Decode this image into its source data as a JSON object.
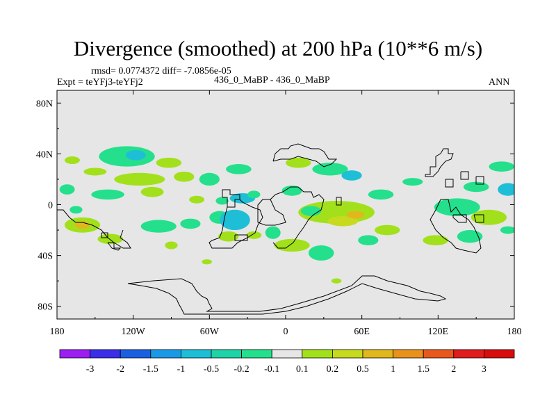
{
  "page": {
    "title": "Divergence (smoothed) at 200 hPa (10**6 m/s)",
    "stats": "rmsd= 0.0774372 diff= -7.0856e-05",
    "left_label": "Expt = teYFj3-teYFj2",
    "center_label": "436_0_MaBP - 436_0_MaBP",
    "right_label": "ANN"
  },
  "chart_data": {
    "type": "heatmap",
    "title": "Divergence (smoothed) at 200 hPa (10**6 m/s)",
    "projection": "cylindrical equidistant",
    "xlim": [
      -180,
      180
    ],
    "ylim": [
      -90,
      90
    ],
    "x_ticks": [
      -180,
      -120,
      -60,
      0,
      60,
      120,
      180
    ],
    "x_tick_labels": [
      "180",
      "120W",
      "60W",
      "0",
      "60E",
      "120E",
      "180"
    ],
    "y_ticks": [
      80,
      40,
      0,
      -40,
      -80
    ],
    "y_tick_labels": [
      "80N",
      "40N",
      "0",
      "40S",
      "80S"
    ],
    "background_color": "#e6e6e6",
    "colorbar": {
      "levels": [
        "-3",
        "-2",
        "-1.5",
        "-1",
        "-0.5",
        "-0.2",
        "-0.1",
        "0.1",
        "0.2",
        "0.5",
        "1",
        "1.5",
        "2",
        "3"
      ],
      "colors": [
        "#9b1ff0",
        "#3a2ee8",
        "#1a5fe0",
        "#1a9ae6",
        "#1ebfd6",
        "#1dd3a7",
        "#24e08c",
        "#e6e6e6",
        "#a3e01c",
        "#c8da1e",
        "#e0b81e",
        "#e8921c",
        "#e8581c",
        "#e01c1c",
        "#d80c0c"
      ]
    },
    "blobs": [
      {
        "lon": -168,
        "lat": 35,
        "rx": 6,
        "ry": 3,
        "cls": "#a3e01c"
      },
      {
        "lon": -125,
        "lat": 38,
        "rx": 22,
        "ry": 8,
        "cls": "#24e08c"
      },
      {
        "lon": -118,
        "lat": 39,
        "rx": 8,
        "ry": 4,
        "cls": "#1ebfd6"
      },
      {
        "lon": -92,
        "lat": 33,
        "rx": 10,
        "ry": 4,
        "cls": "#a3e01c"
      },
      {
        "lon": -150,
        "lat": 26,
        "rx": 9,
        "ry": 3,
        "cls": "#a3e01c"
      },
      {
        "lon": -115,
        "lat": 20,
        "rx": 20,
        "ry": 5,
        "cls": "#a3e01c"
      },
      {
        "lon": -80,
        "lat": 22,
        "rx": 8,
        "ry": 4,
        "cls": "#a3e01c"
      },
      {
        "lon": -60,
        "lat": 20,
        "rx": 8,
        "ry": 5,
        "cls": "#24e08c"
      },
      {
        "lon": -37,
        "lat": 28,
        "rx": 10,
        "ry": 4,
        "cls": "#24e08c"
      },
      {
        "lon": -172,
        "lat": 12,
        "rx": 6,
        "ry": 4,
        "cls": "#24e08c"
      },
      {
        "lon": -140,
        "lat": 8,
        "rx": 13,
        "ry": 4,
        "cls": "#24e08c"
      },
      {
        "lon": -105,
        "lat": 10,
        "rx": 9,
        "ry": 4,
        "cls": "#a3e01c"
      },
      {
        "lon": -70,
        "lat": 4,
        "rx": 6,
        "ry": 3,
        "cls": "#a3e01c"
      },
      {
        "lon": -50,
        "lat": 3,
        "rx": 5,
        "ry": 3,
        "cls": "#24e08c"
      },
      {
        "lon": -34,
        "lat": 5,
        "rx": 10,
        "ry": 4,
        "cls": "#1ebfd6"
      },
      {
        "lon": -25,
        "lat": 8,
        "rx": 5,
        "ry": 3,
        "cls": "#24e08c"
      },
      {
        "lon": -160,
        "lat": -16,
        "rx": 14,
        "ry": 6,
        "cls": "#a3e01c"
      },
      {
        "lon": -160,
        "lat": -16,
        "rx": 6,
        "ry": 3,
        "cls": "#e0b81e"
      },
      {
        "lon": -138,
        "lat": -27,
        "rx": 10,
        "ry": 4,
        "cls": "#a3e01c"
      },
      {
        "lon": -100,
        "lat": -17,
        "rx": 14,
        "ry": 5,
        "cls": "#24e08c"
      },
      {
        "lon": -75,
        "lat": -15,
        "rx": 8,
        "ry": 4,
        "cls": "#24e08c"
      },
      {
        "lon": -52,
        "lat": -10,
        "rx": 8,
        "ry": 5,
        "cls": "#24e08c"
      },
      {
        "lon": -165,
        "lat": -4,
        "rx": 5,
        "ry": 3,
        "cls": "#24e08c"
      },
      {
        "lon": -40,
        "lat": -12,
        "rx": 12,
        "ry": 8,
        "cls": "#1ebfd6"
      },
      {
        "lon": -10,
        "lat": -22,
        "rx": 6,
        "ry": 5,
        "cls": "#24e08c"
      },
      {
        "lon": -25,
        "lat": -24,
        "rx": 6,
        "ry": 3,
        "cls": "#a3e01c"
      },
      {
        "lon": 10,
        "lat": 33,
        "rx": 10,
        "ry": 4,
        "cls": "#a3e01c"
      },
      {
        "lon": 35,
        "lat": 28,
        "rx": 14,
        "ry": 5,
        "cls": "#24e08c"
      },
      {
        "lon": 52,
        "lat": 23,
        "rx": 8,
        "ry": 4,
        "cls": "#1ebfd6"
      },
      {
        "lon": 5,
        "lat": 11,
        "rx": 8,
        "ry": 4,
        "cls": "#24e08c"
      },
      {
        "lon": 40,
        "lat": -6,
        "rx": 30,
        "ry": 9,
        "cls": "#a3e01c"
      },
      {
        "lon": 45,
        "lat": -13,
        "rx": 12,
        "ry": 4,
        "cls": "#c8da1e"
      },
      {
        "lon": 55,
        "lat": -8,
        "rx": 7,
        "ry": 3,
        "cls": "#e0b81e"
      },
      {
        "lon": 20,
        "lat": -5,
        "rx": 8,
        "ry": 4,
        "cls": "#24e08c"
      },
      {
        "lon": 75,
        "lat": 8,
        "rx": 10,
        "ry": 4,
        "cls": "#24e08c"
      },
      {
        "lon": 5,
        "lat": -32,
        "rx": 14,
        "ry": 5,
        "cls": "#a3e01c"
      },
      {
        "lon": 28,
        "lat": -38,
        "rx": 10,
        "ry": 6,
        "cls": "#24e08c"
      },
      {
        "lon": 65,
        "lat": -28,
        "rx": 8,
        "ry": 4,
        "cls": "#24e08c"
      },
      {
        "lon": 80,
        "lat": -20,
        "rx": 10,
        "ry": 4,
        "cls": "#a3e01c"
      },
      {
        "lon": 100,
        "lat": 18,
        "rx": 8,
        "ry": 3,
        "cls": "#24e08c"
      },
      {
        "lon": 135,
        "lat": -2,
        "rx": 18,
        "ry": 7,
        "cls": "#24e08c"
      },
      {
        "lon": 150,
        "lat": 14,
        "rx": 10,
        "ry": 4,
        "cls": "#24e08c"
      },
      {
        "lon": 145,
        "lat": -25,
        "rx": 10,
        "ry": 5,
        "cls": "#24e08c"
      },
      {
        "lon": 160,
        "lat": -10,
        "rx": 14,
        "ry": 6,
        "cls": "#a3e01c"
      },
      {
        "lon": 175,
        "lat": 12,
        "rx": 8,
        "ry": 5,
        "cls": "#1ebfd6"
      },
      {
        "lon": 170,
        "lat": 30,
        "rx": 10,
        "ry": 4,
        "cls": "#24e08c"
      },
      {
        "lon": 175,
        "lat": -20,
        "rx": 6,
        "ry": 3,
        "cls": "#24e08c"
      },
      {
        "lon": 118,
        "lat": -28,
        "rx": 10,
        "ry": 4,
        "cls": "#a3e01c"
      },
      {
        "lon": -45,
        "lat": -25,
        "rx": 8,
        "ry": 4,
        "cls": "#a3e01c"
      },
      {
        "lon": -90,
        "lat": -32,
        "rx": 5,
        "ry": 3,
        "cls": "#a3e01c"
      },
      {
        "lon": -62,
        "lat": -45,
        "rx": 4,
        "ry": 2,
        "cls": "#a3e01c"
      },
      {
        "lon": 40,
        "lat": -60,
        "rx": 4,
        "ry": 2,
        "cls": "#a3e01c"
      }
    ],
    "coastlines": [
      [
        [
          -180,
          -4
        ],
        [
          -175,
          -4
        ],
        [
          -170,
          -10
        ],
        [
          -165,
          -14
        ],
        [
          -160,
          -14
        ],
        [
          -152,
          -16
        ],
        [
          -145,
          -20
        ],
        [
          -140,
          -26
        ],
        [
          -135,
          -30
        ],
        [
          -128,
          -34
        ],
        [
          -122,
          -34
        ],
        [
          -125,
          -30
        ],
        [
          -130,
          -26
        ],
        [
          -128,
          -20
        ]
      ],
      [
        [
          -145,
          -22
        ],
        [
          -140,
          -22
        ],
        [
          -140,
          -26
        ],
        [
          -145,
          -26
        ],
        [
          -145,
          -22
        ]
      ],
      [
        [
          -140,
          -30
        ],
        [
          -135,
          -30
        ],
        [
          -135,
          -34
        ],
        [
          -130,
          -34
        ],
        [
          -132,
          -36
        ],
        [
          -137,
          -34
        ],
        [
          -140,
          -30
        ]
      ],
      [
        [
          -50,
          6
        ],
        [
          -46,
          6
        ],
        [
          -46,
          -2
        ],
        [
          -40,
          -2
        ],
        [
          -40,
          4
        ],
        [
          -36,
          4
        ],
        [
          -36,
          8
        ],
        [
          -44,
          8
        ],
        [
          -44,
          12
        ],
        [
          -50,
          12
        ],
        [
          -50,
          6
        ]
      ],
      [
        [
          -46,
          -2
        ],
        [
          -48,
          -10
        ],
        [
          -50,
          -20
        ],
        [
          -52,
          -26
        ],
        [
          -58,
          -28
        ],
        [
          -60,
          -30
        ],
        [
          -58,
          -34
        ],
        [
          -42,
          -34
        ],
        [
          -38,
          -30
        ],
        [
          -30,
          -26
        ],
        [
          -24,
          -22
        ],
        [
          -22,
          -16
        ],
        [
          -18,
          -10
        ],
        [
          -20,
          -4
        ],
        [
          -26,
          -2
        ],
        [
          -34,
          2
        ],
        [
          -36,
          4
        ]
      ],
      [
        [
          -22,
          -14
        ],
        [
          -16,
          -16
        ],
        [
          -8,
          -16
        ],
        [
          0,
          -14
        ],
        [
          -2,
          -8
        ],
        [
          -8,
          -4
        ],
        [
          -12,
          4
        ],
        [
          -18,
          4
        ],
        [
          -22,
          0
        ],
        [
          -22,
          -14
        ]
      ],
      [
        [
          -10,
          -30
        ],
        [
          -6,
          -34
        ],
        [
          0,
          -34
        ],
        [
          6,
          -30
        ],
        [
          10,
          -24
        ],
        [
          14,
          -18
        ],
        [
          18,
          -12
        ],
        [
          22,
          -8
        ],
        [
          28,
          -4
        ],
        [
          30,
          4
        ],
        [
          26,
          8
        ],
        [
          22,
          6
        ],
        [
          20,
          10
        ],
        [
          14,
          10
        ],
        [
          10,
          14
        ],
        [
          4,
          14
        ],
        [
          -2,
          10
        ],
        [
          -8,
          8
        ],
        [
          -12,
          4
        ]
      ],
      [
        [
          -10,
          34
        ],
        [
          -8,
          40
        ],
        [
          -4,
          44
        ],
        [
          2,
          44
        ],
        [
          4,
          46
        ],
        [
          10,
          48
        ],
        [
          14,
          46
        ],
        [
          20,
          44
        ],
        [
          26,
          44
        ],
        [
          30,
          42
        ],
        [
          34,
          36
        ],
        [
          40,
          36
        ],
        [
          36,
          32
        ],
        [
          30,
          30
        ],
        [
          24,
          34
        ],
        [
          18,
          36
        ],
        [
          10,
          38
        ],
        [
          4,
          36
        ],
        [
          -4,
          36
        ],
        [
          -10,
          34
        ]
      ],
      [
        [
          40,
          6
        ],
        [
          44,
          6
        ],
        [
          44,
          0
        ],
        [
          40,
          0
        ],
        [
          40,
          6
        ]
      ],
      [
        [
          110,
          24
        ],
        [
          114,
          24
        ],
        [
          114,
          30
        ],
        [
          118,
          30
        ],
        [
          118,
          38
        ],
        [
          122,
          40
        ],
        [
          124,
          44
        ],
        [
          128,
          44
        ],
        [
          128,
          40
        ],
        [
          132,
          40
        ],
        [
          130,
          36
        ],
        [
          126,
          34
        ],
        [
          122,
          30
        ],
        [
          120,
          26
        ],
        [
          116,
          22
        ],
        [
          110,
          22
        ],
        [
          110,
          24
        ]
      ],
      [
        [
          126,
          20
        ],
        [
          132,
          20
        ],
        [
          132,
          14
        ],
        [
          126,
          14
        ],
        [
          126,
          20
        ]
      ],
      [
        [
          138,
          26
        ],
        [
          144,
          26
        ],
        [
          144,
          20
        ],
        [
          138,
          20
        ],
        [
          138,
          26
        ]
      ],
      [
        [
          150,
          22
        ],
        [
          156,
          22
        ],
        [
          156,
          16
        ],
        [
          150,
          16
        ],
        [
          150,
          22
        ]
      ],
      [
        [
          122,
          4
        ],
        [
          118,
          -4
        ],
        [
          114,
          -12
        ],
        [
          118,
          -20
        ],
        [
          124,
          -26
        ],
        [
          130,
          -30
        ],
        [
          134,
          -34
        ],
        [
          140,
          -36
        ],
        [
          150,
          -38
        ],
        [
          154,
          -34
        ],
        [
          152,
          -26
        ],
        [
          148,
          -18
        ],
        [
          144,
          -12
        ],
        [
          138,
          -8
        ],
        [
          134,
          -2
        ],
        [
          130,
          -6
        ],
        [
          128,
          4
        ],
        [
          122,
          4
        ]
      ],
      [
        [
          132,
          -8
        ],
        [
          142,
          -8
        ],
        [
          142,
          -14
        ],
        [
          136,
          -14
        ],
        [
          132,
          -10
        ],
        [
          132,
          -8
        ]
      ],
      [
        [
          148,
          -8
        ],
        [
          156,
          -8
        ],
        [
          156,
          -14
        ],
        [
          150,
          -14
        ],
        [
          148,
          -8
        ]
      ],
      [
        [
          -124,
          -62
        ],
        [
          -104,
          -60
        ],
        [
          -82,
          -58
        ],
        [
          -74,
          -62
        ],
        [
          -70,
          -68
        ],
        [
          -66,
          -72
        ],
        [
          -62,
          -74
        ],
        [
          -60,
          -78
        ],
        [
          -58,
          -82
        ],
        [
          -62,
          -84
        ],
        [
          -44,
          -84
        ],
        [
          -20,
          -84
        ],
        [
          -4,
          -82
        ],
        [
          10,
          -78
        ],
        [
          30,
          -72
        ],
        [
          52,
          -64
        ],
        [
          60,
          -56
        ],
        [
          70,
          -56
        ],
        [
          80,
          -60
        ],
        [
          96,
          -64
        ],
        [
          106,
          -68
        ],
        [
          114,
          -70
        ],
        [
          122,
          -72
        ],
        [
          126,
          -74
        ],
        [
          120,
          -76
        ],
        [
          102,
          -74
        ],
        [
          86,
          -70
        ],
        [
          72,
          -66
        ],
        [
          60,
          -62
        ],
        [
          48,
          -68
        ],
        [
          34,
          -74
        ],
        [
          16,
          -80
        ],
        [
          0,
          -84
        ],
        [
          -18,
          -86
        ],
        [
          -40,
          -86
        ],
        [
          -62,
          -86
        ],
        [
          -80,
          -86
        ],
        [
          -82,
          -82
        ],
        [
          -84,
          -78
        ],
        [
          -86,
          -74
        ],
        [
          -92,
          -70
        ],
        [
          -102,
          -66
        ],
        [
          -114,
          -64
        ],
        [
          -124,
          -62
        ]
      ],
      [
        [
          -40,
          -24
        ],
        [
          -30,
          -24
        ],
        [
          -30,
          -28
        ],
        [
          -40,
          -28
        ],
        [
          -40,
          -24
        ]
      ]
    ]
  }
}
